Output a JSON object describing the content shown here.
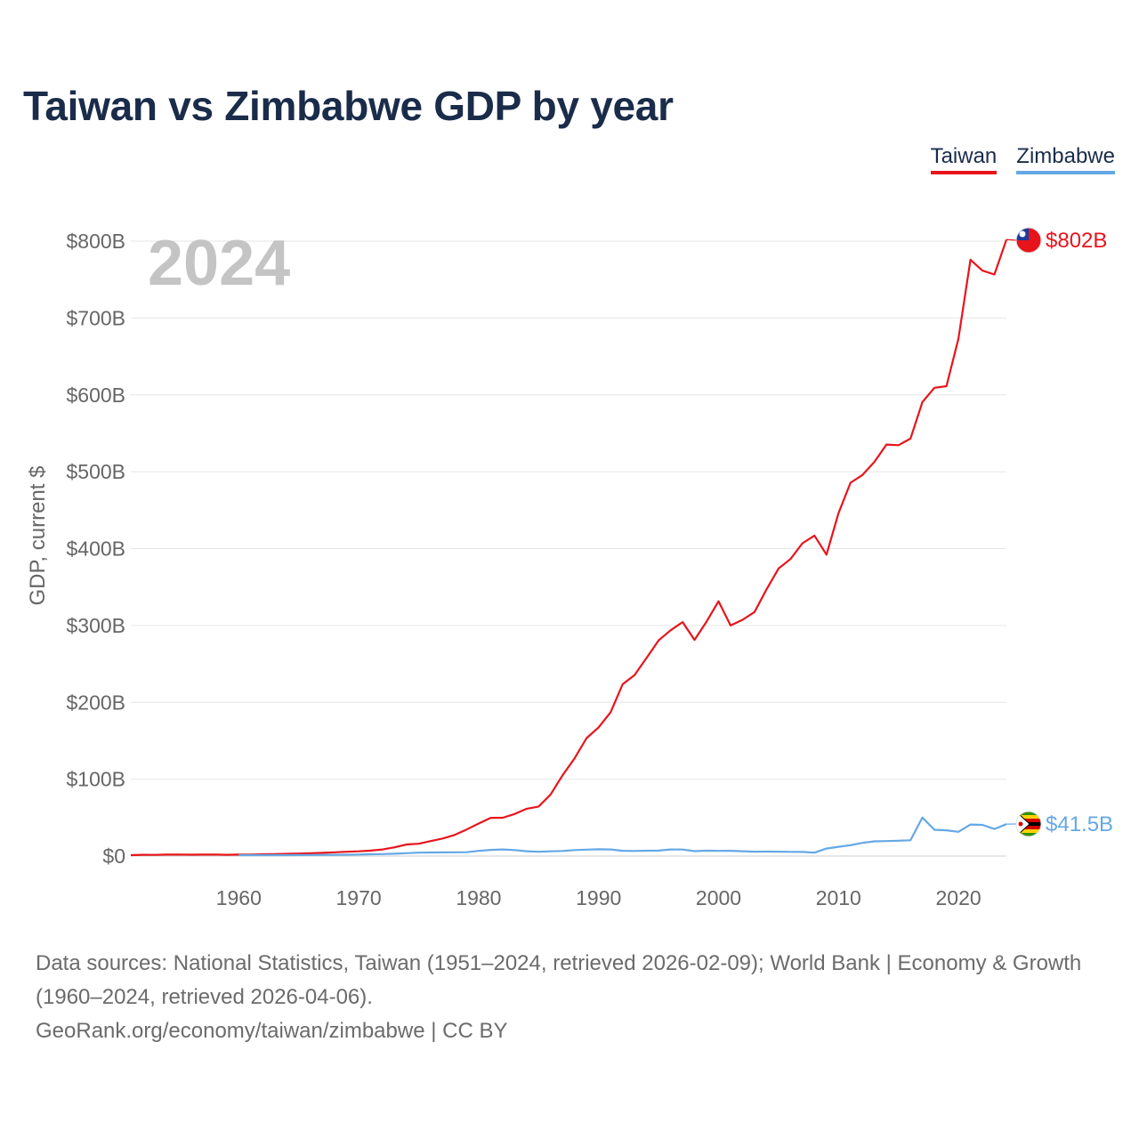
{
  "title": "Taiwan vs Zimbabwe GDP by year",
  "legend": [
    {
      "name": "Taiwan",
      "color": "#e8141c"
    },
    {
      "name": "Zimbabwe",
      "color": "#64a8e6"
    }
  ],
  "footer": {
    "sources": "Data sources: National Statistics, Taiwan (1951–2024, retrieved 2026-02-09); World Bank | Economy & Growth (1960–2024, retrieved 2026-04-06).",
    "credit": "GeoRank.org/economy/taiwan/zimbabwe | CC BY"
  },
  "chart_data": {
    "type": "line",
    "title": "Taiwan vs Zimbabwe GDP by year",
    "current_year": "2024",
    "xlabel": "",
    "ylabel": "GDP, current $",
    "xlim": [
      1951,
      2024
    ],
    "ylim": [
      0,
      800
    ],
    "unit": "billions USD",
    "x_ticks": [
      1960,
      1970,
      1980,
      1990,
      2000,
      2010,
      2020
    ],
    "y_ticks": [
      {
        "value": 0,
        "label": "$0"
      },
      {
        "value": 100,
        "label": "$100B"
      },
      {
        "value": 200,
        "label": "$200B"
      },
      {
        "value": 300,
        "label": "$300B"
      },
      {
        "value": 400,
        "label": "$400B"
      },
      {
        "value": 500,
        "label": "$500B"
      },
      {
        "value": 600,
        "label": "$600B"
      },
      {
        "value": 700,
        "label": "$700B"
      },
      {
        "value": 800,
        "label": "$800B"
      }
    ],
    "series": [
      {
        "name": "Taiwan",
        "color": "#e8141c",
        "end_label": "$802B",
        "flag": "taiwan-flag-icon",
        "x": [
          1951,
          1952,
          1953,
          1954,
          1955,
          1956,
          1957,
          1958,
          1959,
          1960,
          1961,
          1962,
          1963,
          1964,
          1965,
          1966,
          1967,
          1968,
          1969,
          1970,
          1971,
          1972,
          1973,
          1974,
          1975,
          1976,
          1977,
          1978,
          1979,
          1980,
          1981,
          1982,
          1983,
          1984,
          1985,
          1986,
          1987,
          1988,
          1989,
          1990,
          1991,
          1992,
          1993,
          1994,
          1995,
          1996,
          1997,
          1998,
          1999,
          2000,
          2001,
          2002,
          2003,
          2004,
          2005,
          2006,
          2007,
          2008,
          2009,
          2010,
          2011,
          2012,
          2013,
          2014,
          2015,
          2016,
          2017,
          2018,
          2019,
          2020,
          2021,
          2022,
          2023,
          2024
        ],
        "values": [
          1.2,
          1.6,
          1.5,
          1.9,
          2.0,
          1.7,
          1.9,
          2.0,
          1.6,
          1.8,
          2.0,
          2.3,
          2.6,
          2.9,
          3.2,
          3.6,
          4.2,
          4.9,
          5.6,
          6.1,
          7.1,
          8.6,
          11.3,
          15.1,
          16.0,
          19.4,
          22.8,
          27.4,
          34.5,
          42.3,
          49.7,
          49.8,
          54.6,
          61.5,
          64.4,
          80.1,
          105.2,
          127.1,
          153.4,
          167.4,
          187.1,
          223.4,
          235.5,
          257.7,
          280.5,
          293.7,
          304.4,
          281.2,
          304.9,
          331.5,
          300.0,
          307.4,
          317.4,
          346.9,
          374.1,
          386.5,
          406.9,
          416.9,
          392.1,
          446.1,
          485.7,
          495.8,
          512.9,
          535.3,
          534.5,
          543.1,
          590.7,
          609.2,
          611.3,
          673.2,
          775.8,
          761.7,
          756.6,
          802.0
        ]
      },
      {
        "name": "Zimbabwe",
        "color": "#64a8e6",
        "end_label": "$41.5B",
        "flag": "zimbabwe-flag-icon",
        "x": [
          1960,
          1961,
          1962,
          1963,
          1964,
          1965,
          1966,
          1967,
          1968,
          1969,
          1970,
          1971,
          1972,
          1973,
          1974,
          1975,
          1976,
          1977,
          1978,
          1979,
          1980,
          1981,
          1982,
          1983,
          1984,
          1985,
          1986,
          1987,
          1988,
          1989,
          1990,
          1991,
          1992,
          1993,
          1994,
          1995,
          1996,
          1997,
          1998,
          1999,
          2000,
          2001,
          2002,
          2003,
          2004,
          2005,
          2006,
          2007,
          2008,
          2009,
          2010,
          2011,
          2012,
          2013,
          2014,
          2015,
          2016,
          2017,
          2018,
          2019,
          2020,
          2021,
          2022,
          2023,
          2024
        ],
        "values": [
          1.1,
          1.1,
          1.2,
          1.2,
          1.2,
          1.3,
          1.4,
          1.5,
          1.6,
          1.7,
          2.0,
          2.3,
          2.6,
          3.0,
          3.7,
          4.4,
          4.6,
          4.7,
          4.9,
          5.0,
          6.7,
          8.0,
          8.6,
          7.8,
          6.3,
          5.6,
          6.1,
          6.6,
          7.8,
          8.3,
          8.8,
          8.6,
          6.8,
          6.6,
          6.9,
          7.1,
          8.6,
          8.5,
          6.4,
          6.9,
          6.7,
          6.8,
          6.3,
          5.7,
          5.8,
          5.7,
          5.4,
          5.3,
          4.4,
          9.7,
          12.0,
          14.1,
          17.1,
          19.1,
          19.5,
          19.9,
          20.5,
          50.0,
          34.2,
          33.5,
          31.5,
          41.0,
          40.5,
          35.2,
          41.5
        ]
      }
    ]
  }
}
